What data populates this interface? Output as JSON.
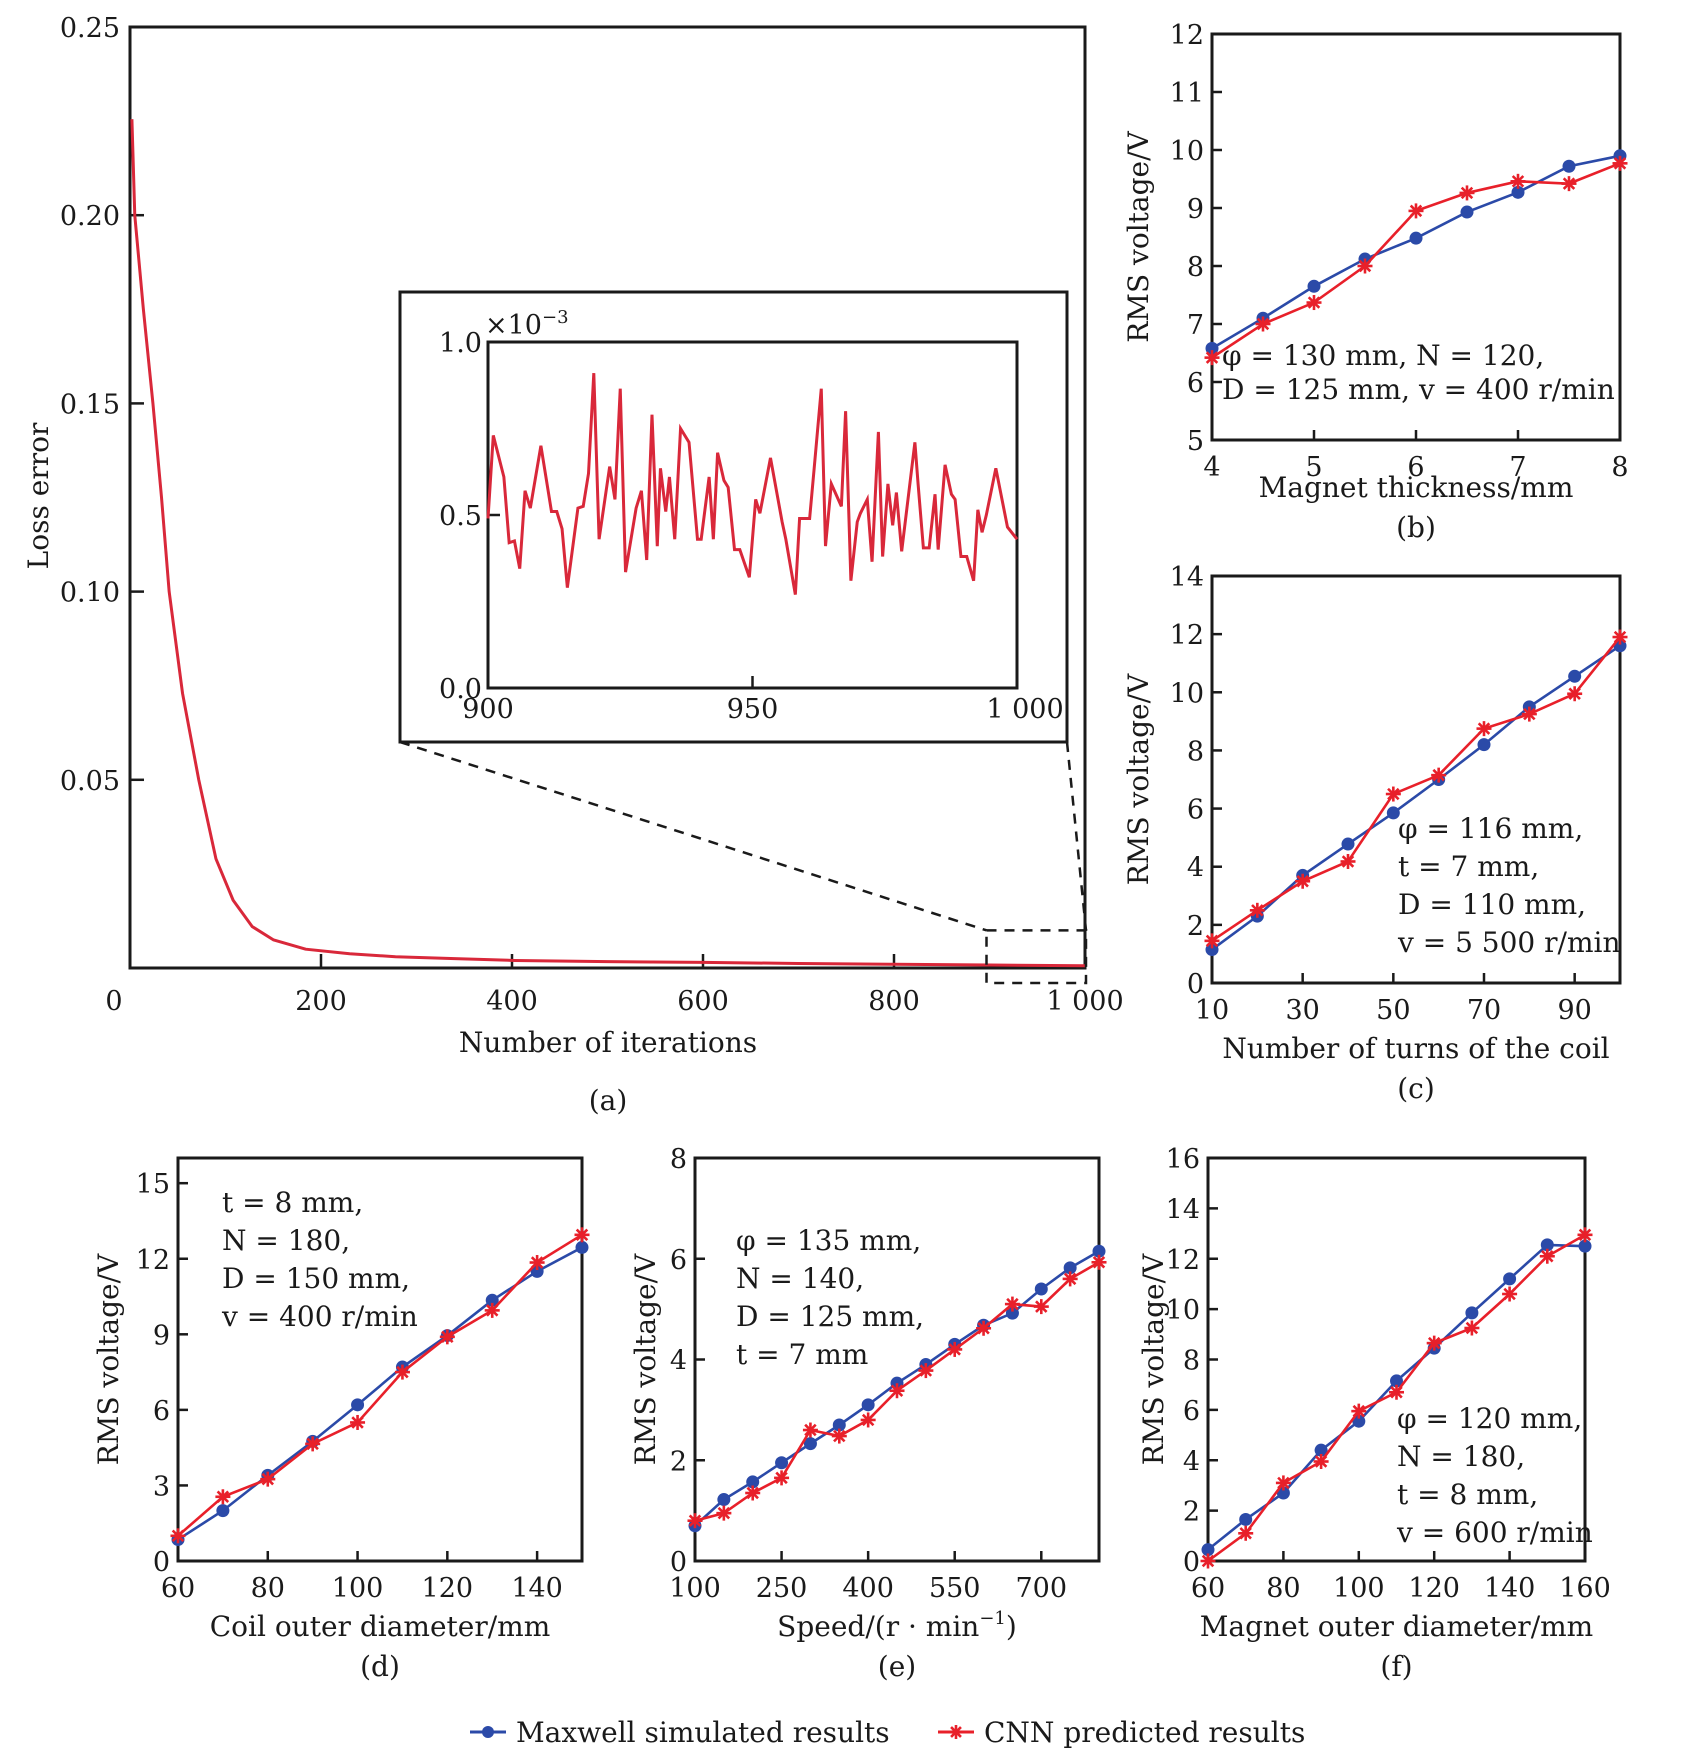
{
  "figure": {
    "legend": [
      {
        "name": "Maxwell simulated results",
        "color": "#2b4aa8",
        "marker": "circle"
      },
      {
        "name": "CNN predicted results",
        "color": "#e8202a",
        "marker": "asterisk"
      }
    ]
  },
  "chart_data": [
    {
      "id": "a",
      "panel_label": "(a)",
      "type": "line",
      "xlabel": "Number of iterations",
      "ylabel": "Loss error",
      "xlim": [
        0,
        1000
      ],
      "ylim": [
        0,
        0.25
      ],
      "xticks": [
        0,
        200,
        400,
        600,
        800,
        1000
      ],
      "xtick_labels": [
        "0",
        "200",
        "400",
        "600",
        "800",
        "1 000"
      ],
      "yticks": [
        0.05,
        0.1,
        0.15,
        0.2,
        0.25
      ],
      "ytick_labels": [
        "0.05",
        "0.10",
        "0.15",
        "0.20",
        "0.25"
      ],
      "series": [
        {
          "name": "Loss",
          "color": "#d9283a",
          "x": [
            2,
            5,
            14,
            24,
            33,
            41,
            55,
            72,
            90,
            108,
            128,
            150,
            184,
            230,
            278,
            340,
            403,
            500,
            600,
            700,
            800,
            900,
            1000
          ],
          "y": [
            0.2255,
            0.2,
            0.175,
            0.15,
            0.125,
            0.1,
            0.073,
            0.05,
            0.029,
            0.018,
            0.011,
            0.0075,
            0.005,
            0.0038,
            0.003,
            0.0025,
            0.002,
            0.0017,
            0.0015,
            0.0012,
            0.001,
            0.0008,
            0.0006
          ]
        }
      ],
      "zoom_region": {
        "x": [
          900,
          1000
        ],
        "y": [
          -0.004,
          0.01
        ]
      },
      "inset": {
        "type": "line",
        "xlim": [
          900,
          1000
        ],
        "ylim": [
          0.0,
          1.0
        ],
        "y_multiplier": "×10−3",
        "y_multiplier_base": "×10",
        "y_multiplier_exp": "−3",
        "xticks": [
          900,
          950,
          1000
        ],
        "xtick_labels": [
          "900",
          "950",
          "1 000"
        ],
        "yticks": [
          0.0,
          0.5,
          1.0
        ],
        "ytick_labels": [
          "0.0",
          "0.5",
          "1.0"
        ],
        "series": [
          {
            "name": "Loss (zoomed)",
            "color": "#d9283a",
            "x": [
              900,
              901,
              903,
              904,
              905,
              906,
              907,
              908,
              910,
              912,
              913,
              914,
              915,
              917,
              918,
              919,
              920,
              921,
              923,
              924,
              925,
              926,
              928,
              929,
              930,
              931,
              932,
              932.6,
              933.6,
              934.3,
              935.3,
              936.4,
              938,
              939.6,
              940.3,
              941.8,
              942.6,
              943.4,
              944.6,
              945.4,
              946.6,
              947.6,
              949.4,
              950.6,
              951.4,
              953.4,
              955.6,
              956.3,
              958.1,
              958.9,
              960.8,
              961.6,
              963,
              963.8,
              964.9,
              966.8,
              967.6,
              968.6,
              969.8,
              970.4,
              971.7,
              972.6,
              973.8,
              974.6,
              975.6,
              976.5,
              977.2,
              978.2,
              980.7,
              981.3,
              982.3,
              983.4,
              984.5,
              985.1,
              986.4,
              987.6,
              988.3,
              989.4,
              990.5,
              991.8,
              992.6,
              993.4,
              994.2,
              996,
              998.2,
              1000
            ],
            "y": [
              0.49,
              0.73,
              0.61,
              0.42,
              0.425,
              0.345,
              0.57,
              0.52,
              0.7,
              0.51,
              0.51,
              0.46,
              0.29,
              0.52,
              0.525,
              0.62,
              0.91,
              0.43,
              0.64,
              0.545,
              0.865,
              0.335,
              0.52,
              0.57,
              0.37,
              0.79,
              0.41,
              0.635,
              0.51,
              0.61,
              0.43,
              0.75,
              0.71,
              0.43,
              0.43,
              0.61,
              0.43,
              0.68,
              0.6,
              0.58,
              0.4,
              0.4,
              0.32,
              0.545,
              0.505,
              0.665,
              0.48,
              0.43,
              0.27,
              0.49,
              0.49,
              0.625,
              0.865,
              0.41,
              0.59,
              0.525,
              0.8,
              0.31,
              0.48,
              0.505,
              0.545,
              0.365,
              0.74,
              0.38,
              0.59,
              0.47,
              0.565,
              0.395,
              0.71,
              0.59,
              0.405,
              0.405,
              0.56,
              0.4,
              0.645,
              0.56,
              0.545,
              0.38,
              0.38,
              0.31,
              0.515,
              0.45,
              0.5,
              0.635,
              0.465,
              0.43
            ]
          }
        ]
      }
    },
    {
      "id": "b",
      "panel_label": "(b)",
      "type": "line",
      "xlabel": "Magnet thickness/mm",
      "ylabel": "RMS voltage/V",
      "xlim": [
        4,
        8
      ],
      "ylim": [
        5,
        12
      ],
      "xticks": [
        4,
        5,
        6,
        7,
        8
      ],
      "xtick_labels": [
        "4",
        "5",
        "6",
        "7",
        "8"
      ],
      "yticks": [
        5,
        6,
        7,
        8,
        9,
        10,
        11,
        12
      ],
      "ytick_labels": [
        "5",
        "6",
        "7",
        "8",
        "9",
        "10",
        "11",
        "12"
      ],
      "annotation": [
        "φ = 130 mm, N = 120,",
        "D = 125 mm, v = 400 r/min"
      ],
      "x": [
        4,
        4.5,
        5,
        5.5,
        6,
        6.5,
        7,
        7.5,
        8
      ],
      "series": [
        {
          "name": "Maxwell simulated results",
          "values": [
            6.58,
            7.1,
            7.65,
            8.12,
            8.48,
            8.93,
            9.27,
            9.72,
            9.9
          ]
        },
        {
          "name": "CNN predicted results",
          "values": [
            6.42,
            7.0,
            7.37,
            8.0,
            8.95,
            9.26,
            9.46,
            9.42,
            9.77
          ]
        }
      ]
    },
    {
      "id": "c",
      "panel_label": "(c)",
      "type": "line",
      "xlabel": "Number of turns of the coil",
      "ylabel": "RMS voltage/V",
      "xlim": [
        10,
        100
      ],
      "ylim": [
        0,
        14
      ],
      "xticks": [
        10,
        30,
        50,
        70,
        90
      ],
      "xtick_labels": [
        "10",
        "30",
        "50",
        "70",
        "90"
      ],
      "yticks": [
        0,
        2,
        4,
        6,
        8,
        10,
        12,
        14
      ],
      "ytick_labels": [
        "0",
        "2",
        "4",
        "6",
        "8",
        "10",
        "12",
        "14"
      ],
      "annotation": [
        "φ = 116 mm,",
        "t = 7 mm,",
        "D = 110 mm,",
        "v = 5 500 r/min"
      ],
      "x": [
        10,
        20,
        30,
        40,
        50,
        60,
        70,
        80,
        90,
        100
      ],
      "series": [
        {
          "name": "Maxwell simulated results",
          "values": [
            1.15,
            2.3,
            3.7,
            4.78,
            5.85,
            7.0,
            8.2,
            9.5,
            10.55,
            11.6
          ]
        },
        {
          "name": "CNN predicted results",
          "values": [
            1.45,
            2.5,
            3.5,
            4.18,
            6.5,
            7.15,
            8.75,
            9.25,
            9.95,
            11.9
          ]
        }
      ]
    },
    {
      "id": "d",
      "panel_label": "(d)",
      "type": "line",
      "xlabel": "Coil outer diameter/mm",
      "ylabel": "RMS voltage/V",
      "xlim": [
        60,
        150
      ],
      "ylim": [
        0,
        16
      ],
      "xticks": [
        60,
        80,
        100,
        120,
        140
      ],
      "xtick_labels": [
        "60",
        "80",
        "100",
        "120",
        "140"
      ],
      "yticks": [
        0,
        3,
        6,
        9,
        12,
        15
      ],
      "ytick_labels": [
        "0",
        "3",
        "6",
        "9",
        "12",
        "15"
      ],
      "annotation": [
        "t = 8 mm,",
        "N = 180,",
        "D = 150 mm,",
        "v = 400 r/min"
      ],
      "x": [
        60,
        70,
        80,
        90,
        100,
        110,
        120,
        130,
        140,
        150
      ],
      "series": [
        {
          "name": "Maxwell simulated results",
          "values": [
            0.85,
            2.0,
            3.4,
            4.75,
            6.2,
            7.7,
            8.95,
            10.35,
            11.5,
            12.45
          ]
        },
        {
          "name": "CNN predicted results",
          "values": [
            1.0,
            2.55,
            3.25,
            4.65,
            5.5,
            7.5,
            8.9,
            9.95,
            11.85,
            12.95
          ]
        }
      ]
    },
    {
      "id": "e",
      "panel_label": "(e)",
      "type": "line",
      "xlabel": "Speed/(r·min−1)",
      "xlabel_base": "Speed/(r · min",
      "xlabel_exp": "−1",
      "xlabel_tail": ")",
      "ylabel": "RMS voltage/V",
      "xlim": [
        100,
        800
      ],
      "ylim": [
        0,
        8
      ],
      "xticks": [
        100,
        250,
        400,
        550,
        700
      ],
      "xtick_labels": [
        "100",
        "250",
        "400",
        "550",
        "700"
      ],
      "yticks": [
        0,
        2,
        4,
        6,
        8
      ],
      "ytick_labels": [
        "0",
        "2",
        "4",
        "6",
        "8"
      ],
      "annotation": [
        "φ = 135 mm,",
        "N = 140,",
        "D = 125 mm,",
        "t = 7 mm"
      ],
      "x": [
        100,
        150,
        200,
        250,
        300,
        350,
        400,
        450,
        500,
        550,
        600,
        650,
        700,
        750,
        800
      ],
      "series": [
        {
          "name": "Maxwell simulated results",
          "values": [
            0.7,
            1.22,
            1.57,
            1.95,
            2.33,
            2.7,
            3.1,
            3.53,
            3.9,
            4.3,
            4.68,
            4.92,
            5.4,
            5.82,
            6.15
          ]
        },
        {
          "name": "CNN predicted results",
          "values": [
            0.8,
            0.95,
            1.35,
            1.65,
            2.6,
            2.48,
            2.8,
            3.38,
            3.78,
            4.2,
            4.62,
            5.1,
            5.05,
            5.6,
            5.93
          ]
        }
      ]
    },
    {
      "id": "f",
      "panel_label": "(f)",
      "type": "line",
      "xlabel": "Magnet outer diameter/mm",
      "ylabel": "RMS voltage/V",
      "xlim": [
        60,
        160
      ],
      "ylim": [
        0,
        16
      ],
      "xticks": [
        60,
        80,
        100,
        120,
        140,
        160
      ],
      "xtick_labels": [
        "60",
        "80",
        "100",
        "120",
        "140",
        "160"
      ],
      "yticks": [
        0,
        2,
        4,
        6,
        8,
        10,
        12,
        14,
        16
      ],
      "ytick_labels": [
        "0",
        "2",
        "4",
        "6",
        "8",
        "10",
        "12",
        "14",
        "16"
      ],
      "annotation": [
        "φ = 120 mm,",
        "N = 180,",
        "t = 8 mm,",
        "v = 600 r/min"
      ],
      "x": [
        60,
        70,
        80,
        90,
        100,
        110,
        120,
        130,
        140,
        150,
        160
      ],
      "series": [
        {
          "name": "Maxwell simulated results",
          "values": [
            0.45,
            1.65,
            2.7,
            4.4,
            5.55,
            7.15,
            8.45,
            9.85,
            11.2,
            12.55,
            12.5
          ]
        },
        {
          "name": "CNN predicted results",
          "values": [
            0.0,
            1.1,
            3.1,
            3.95,
            5.95,
            6.7,
            8.65,
            9.25,
            10.6,
            12.1,
            12.95
          ]
        }
      ]
    }
  ]
}
